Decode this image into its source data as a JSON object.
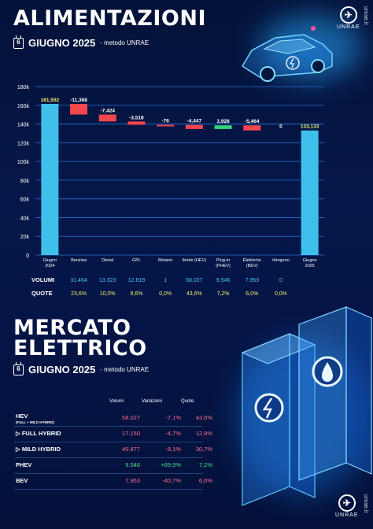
{
  "header": {
    "title": "ALIMENTAZIONI",
    "calendar_day": "6",
    "period": "GIUGNO 2025",
    "method": "- metodo UNRAE"
  },
  "brand": {
    "logo_text": "UNRAE",
    "url": "unrae.it"
  },
  "chart_data": {
    "type": "waterfall",
    "title": "",
    "ylim": [
      0,
      180000
    ],
    "ytick_labels": [
      "0",
      "20k",
      "40k",
      "60k",
      "80k",
      "100k",
      "120k",
      "140k",
      "160k",
      "180k"
    ],
    "categories": [
      "Giugno\n2024",
      "Benzina",
      "Diesel",
      "GPL",
      "Metano",
      "Ibride (HEV)",
      "Plug-in\n(PHEV)",
      "Elettriche\n(BEV)",
      "Idrogeno",
      "Giugno\n2025"
    ],
    "values": [
      161502,
      -11368,
      -7424,
      -3518,
      -76,
      -4447,
      3928,
      -5464,
      0,
      133133
    ],
    "labels": [
      "161,502",
      "-11,368",
      "-7,424",
      "-3,518",
      "-76",
      "-4,447",
      "3,928",
      "-5,464",
      "0",
      "133,133"
    ],
    "kinds": [
      "total",
      "delta",
      "delta",
      "delta",
      "delta",
      "delta",
      "delta",
      "delta",
      "delta",
      "total"
    ],
    "colors": {
      "total": "#3fc0ea",
      "decrease": "#f0464c",
      "increase": "#33d67a",
      "grid": "#2b6fd8"
    }
  },
  "rows": {
    "volumi_label": "VOLUMI",
    "quote_label": "QUOTE",
    "volumi": [
      "31.464",
      "13.323",
      "12.819",
      "1",
      "58.027",
      "9.546",
      "7.953",
      "0"
    ],
    "quote": [
      "23,6%",
      "10,0%",
      "9,6%",
      "0,0%",
      "43,6%",
      "7,2%",
      "6,0%",
      "0,0%"
    ],
    "volumi_color": "#49c2ff",
    "quote_color": "#e8f06a"
  },
  "mercato": {
    "title_line1": "MERCATO",
    "title_line2": "ELETTRICO",
    "period": "GIUGNO 2025",
    "method": "- metodo UNRAE",
    "cols": [
      "Volumi",
      "Variazioni",
      "Quote"
    ],
    "rows": [
      {
        "label": "HEV",
        "sub": "(FULL + MILD HYBRID)",
        "volumi": "58.027",
        "var": "-7,1%",
        "quota": "43,6%",
        "color": "#ff6f8f"
      },
      {
        "label": "▷ FULL HYBRID",
        "sub": "",
        "volumi": "17.150",
        "var": "-4,7%",
        "quota": "12,9%",
        "color": "#ff6f8f"
      },
      {
        "label": "▷ MILD HYBRID",
        "sub": "",
        "volumi": "40.877",
        "var": "-8,1%",
        "quota": "30,7%",
        "color": "#ff6f8f"
      },
      {
        "label": "PHEV",
        "sub": "",
        "volumi": "9.546",
        "var": "+69,9%",
        "quota": "7,2%",
        "color": "#45e08a"
      },
      {
        "label": "BEV",
        "sub": "",
        "volumi": "7.953",
        "var": "-40,7%",
        "quota": "6,0%",
        "color": "#ff6f8f"
      }
    ]
  }
}
